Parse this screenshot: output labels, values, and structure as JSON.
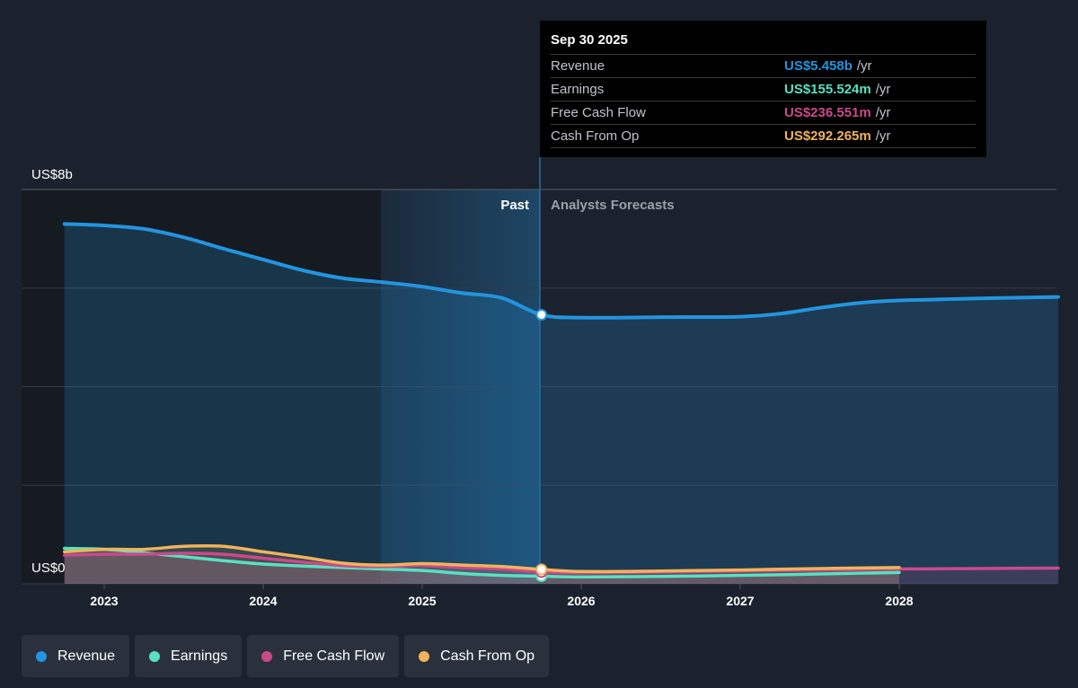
{
  "chart_data": {
    "type": "area",
    "y_axis": {
      "top_label": "US$8b",
      "bottom_label": "US$0",
      "ylim": [
        0,
        8
      ]
    },
    "x_ticks": [
      "2023",
      "2024",
      "2025",
      "2026",
      "2027",
      "2028"
    ],
    "past_label": "Past",
    "forecast_label": "Analysts Forecasts",
    "series": [
      {
        "name": "Revenue",
        "color": "#2394df",
        "x": [
          2022.75,
          2023.0,
          2023.25,
          2023.5,
          2023.75,
          2024.0,
          2024.25,
          2024.5,
          2024.75,
          2025.0,
          2025.25,
          2025.5,
          2025.75,
          2026.0,
          2026.5,
          2027.0,
          2027.25,
          2027.5,
          2027.75,
          2028.0,
          2028.5,
          2029.0
        ],
        "values": [
          7.3,
          7.27,
          7.2,
          7.03,
          6.8,
          6.58,
          6.36,
          6.2,
          6.12,
          6.03,
          5.9,
          5.8,
          5.458,
          5.4,
          5.41,
          5.42,
          5.48,
          5.6,
          5.7,
          5.75,
          5.79,
          5.82
        ]
      },
      {
        "name": "Earnings",
        "color": "#58e1c1",
        "x": [
          2022.75,
          2023.0,
          2023.25,
          2023.5,
          2023.75,
          2024.0,
          2024.25,
          2024.5,
          2024.75,
          2025.0,
          2025.25,
          2025.5,
          2025.75,
          2026.0,
          2026.5,
          2027.0,
          2027.5,
          2028.0
        ],
        "values": [
          0.72,
          0.7,
          0.63,
          0.55,
          0.47,
          0.4,
          0.36,
          0.33,
          0.3,
          0.27,
          0.21,
          0.17,
          0.155,
          0.14,
          0.15,
          0.17,
          0.2,
          0.23
        ]
      },
      {
        "name": "Free Cash Flow",
        "color": "#c94a8a",
        "x": [
          2022.75,
          2023.0,
          2023.25,
          2023.5,
          2023.75,
          2024.0,
          2024.25,
          2024.5,
          2024.75,
          2025.0,
          2025.25,
          2025.5,
          2025.75,
          2026.0,
          2026.5,
          2027.0,
          2027.5,
          2028.0,
          2028.5,
          2029.0
        ],
        "values": [
          0.58,
          0.6,
          0.6,
          0.62,
          0.6,
          0.52,
          0.44,
          0.37,
          0.35,
          0.37,
          0.33,
          0.3,
          0.237,
          0.22,
          0.24,
          0.26,
          0.28,
          0.3,
          0.31,
          0.32
        ]
      },
      {
        "name": "Cash From Op",
        "color": "#f0b35c",
        "x": [
          2022.75,
          2023.0,
          2023.25,
          2023.5,
          2023.75,
          2024.0,
          2024.25,
          2024.5,
          2024.75,
          2025.0,
          2025.25,
          2025.5,
          2025.75,
          2026.0,
          2026.5,
          2027.0,
          2027.5,
          2028.0
        ],
        "values": [
          0.65,
          0.7,
          0.7,
          0.76,
          0.76,
          0.65,
          0.54,
          0.42,
          0.38,
          0.41,
          0.38,
          0.35,
          0.292,
          0.25,
          0.26,
          0.28,
          0.31,
          0.33
        ]
      }
    ]
  },
  "tooltip": {
    "date": "Sep 30 2025",
    "rows": [
      {
        "label": "Revenue",
        "value": "US$5.458b",
        "unit": "/yr",
        "color": "#2394df"
      },
      {
        "label": "Earnings",
        "value": "US$155.524m",
        "unit": "/yr",
        "color": "#58e1c1"
      },
      {
        "label": "Free Cash Flow",
        "value": "US$236.551m",
        "unit": "/yr",
        "color": "#c94a8a"
      },
      {
        "label": "Cash From Op",
        "value": "US$292.265m",
        "unit": "/yr",
        "color": "#f0b35c"
      }
    ]
  },
  "legend": [
    {
      "label": "Revenue",
      "color": "#2394df"
    },
    {
      "label": "Earnings",
      "color": "#58e1c1"
    },
    {
      "label": "Free Cash Flow",
      "color": "#c94a8a"
    },
    {
      "label": "Cash From Op",
      "color": "#f0b35c"
    }
  ]
}
